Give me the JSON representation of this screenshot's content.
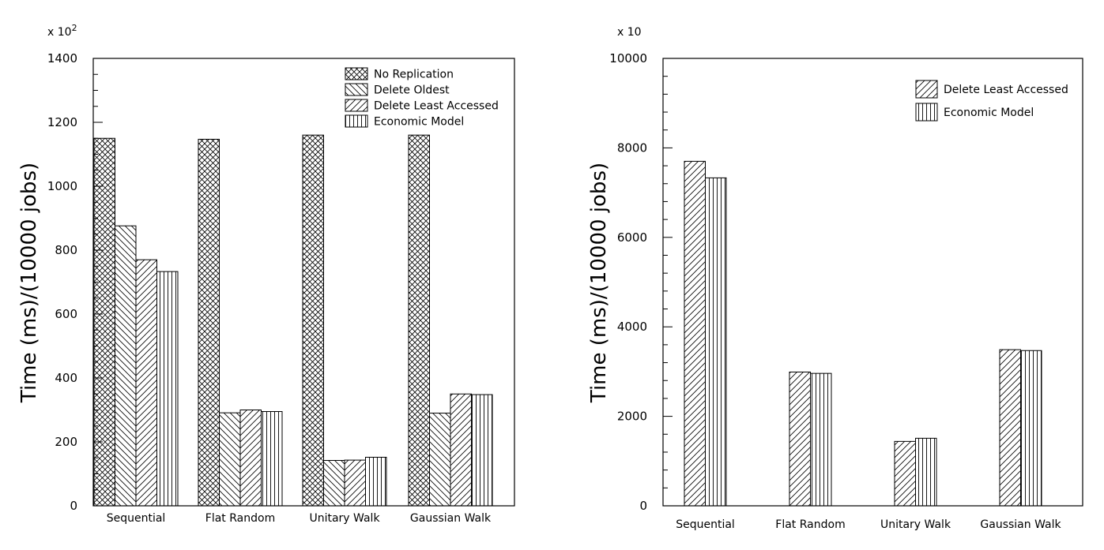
{
  "chart_data": [
    {
      "type": "bar",
      "categories": [
        "Sequential",
        "Flat Random",
        "Unitary Walk",
        "Gaussian Walk"
      ],
      "series": [
        {
          "name": "No Replication",
          "values": [
            1150,
            1147,
            1160,
            1160
          ],
          "pattern": "crosshatch"
        },
        {
          "name": "Delete Oldest",
          "values": [
            876,
            291,
            142,
            290
          ],
          "pattern": "back-diagonal"
        },
        {
          "name": "Delete Least Accessed",
          "values": [
            770,
            300,
            143,
            350
          ],
          "pattern": "diagonal"
        },
        {
          "name": "Economic Model",
          "values": [
            733,
            295,
            152,
            348
          ],
          "pattern": "vertical"
        }
      ],
      "ylabel": "Time (ms)/(10000 jobs)",
      "multiplier": "x 10",
      "multiplier_exp": "2",
      "ylim": [
        0,
        1400
      ],
      "yticks": [
        0,
        200,
        400,
        600,
        800,
        1000,
        1200,
        1400
      ],
      "y_minor_step": 50,
      "grid": false,
      "legend_position": "top-right"
    },
    {
      "type": "bar",
      "categories": [
        "Sequential",
        "Flat Random",
        "Unitary Walk",
        "Gaussian Walk"
      ],
      "series": [
        {
          "name": "Delete Least Accessed",
          "values": [
            7700,
            2990,
            1440,
            3490
          ],
          "pattern": "diagonal"
        },
        {
          "name": "Economic Model",
          "values": [
            7330,
            2960,
            1510,
            3470
          ],
          "pattern": "vertical"
        }
      ],
      "ylabel": "Time (ms)/(10000 jobs)",
      "multiplier": "x 10",
      "multiplier_exp": "",
      "ylim": [
        0,
        10000
      ],
      "yticks": [
        0,
        2000,
        4000,
        6000,
        8000,
        10000
      ],
      "y_minor_step": 400,
      "grid": false,
      "legend_position": "top-right"
    }
  ]
}
